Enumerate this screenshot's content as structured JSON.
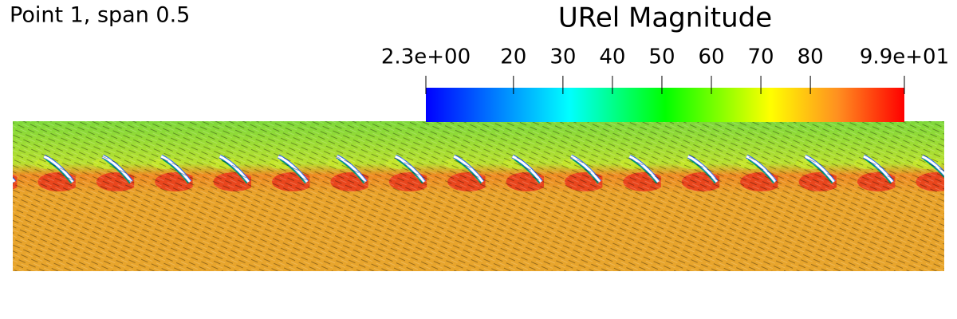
{
  "caption": "Point 1, span 0.5",
  "colorbar": {
    "title": "URel Magnitude",
    "range": [
      2.3,
      99
    ],
    "ticks": [
      {
        "value": 2.3,
        "label": "2.3e+00"
      },
      20,
      30,
      40,
      50,
      60,
      70,
      80,
      {
        "value": 99,
        "label": "9.9e+01"
      }
    ]
  }
}
